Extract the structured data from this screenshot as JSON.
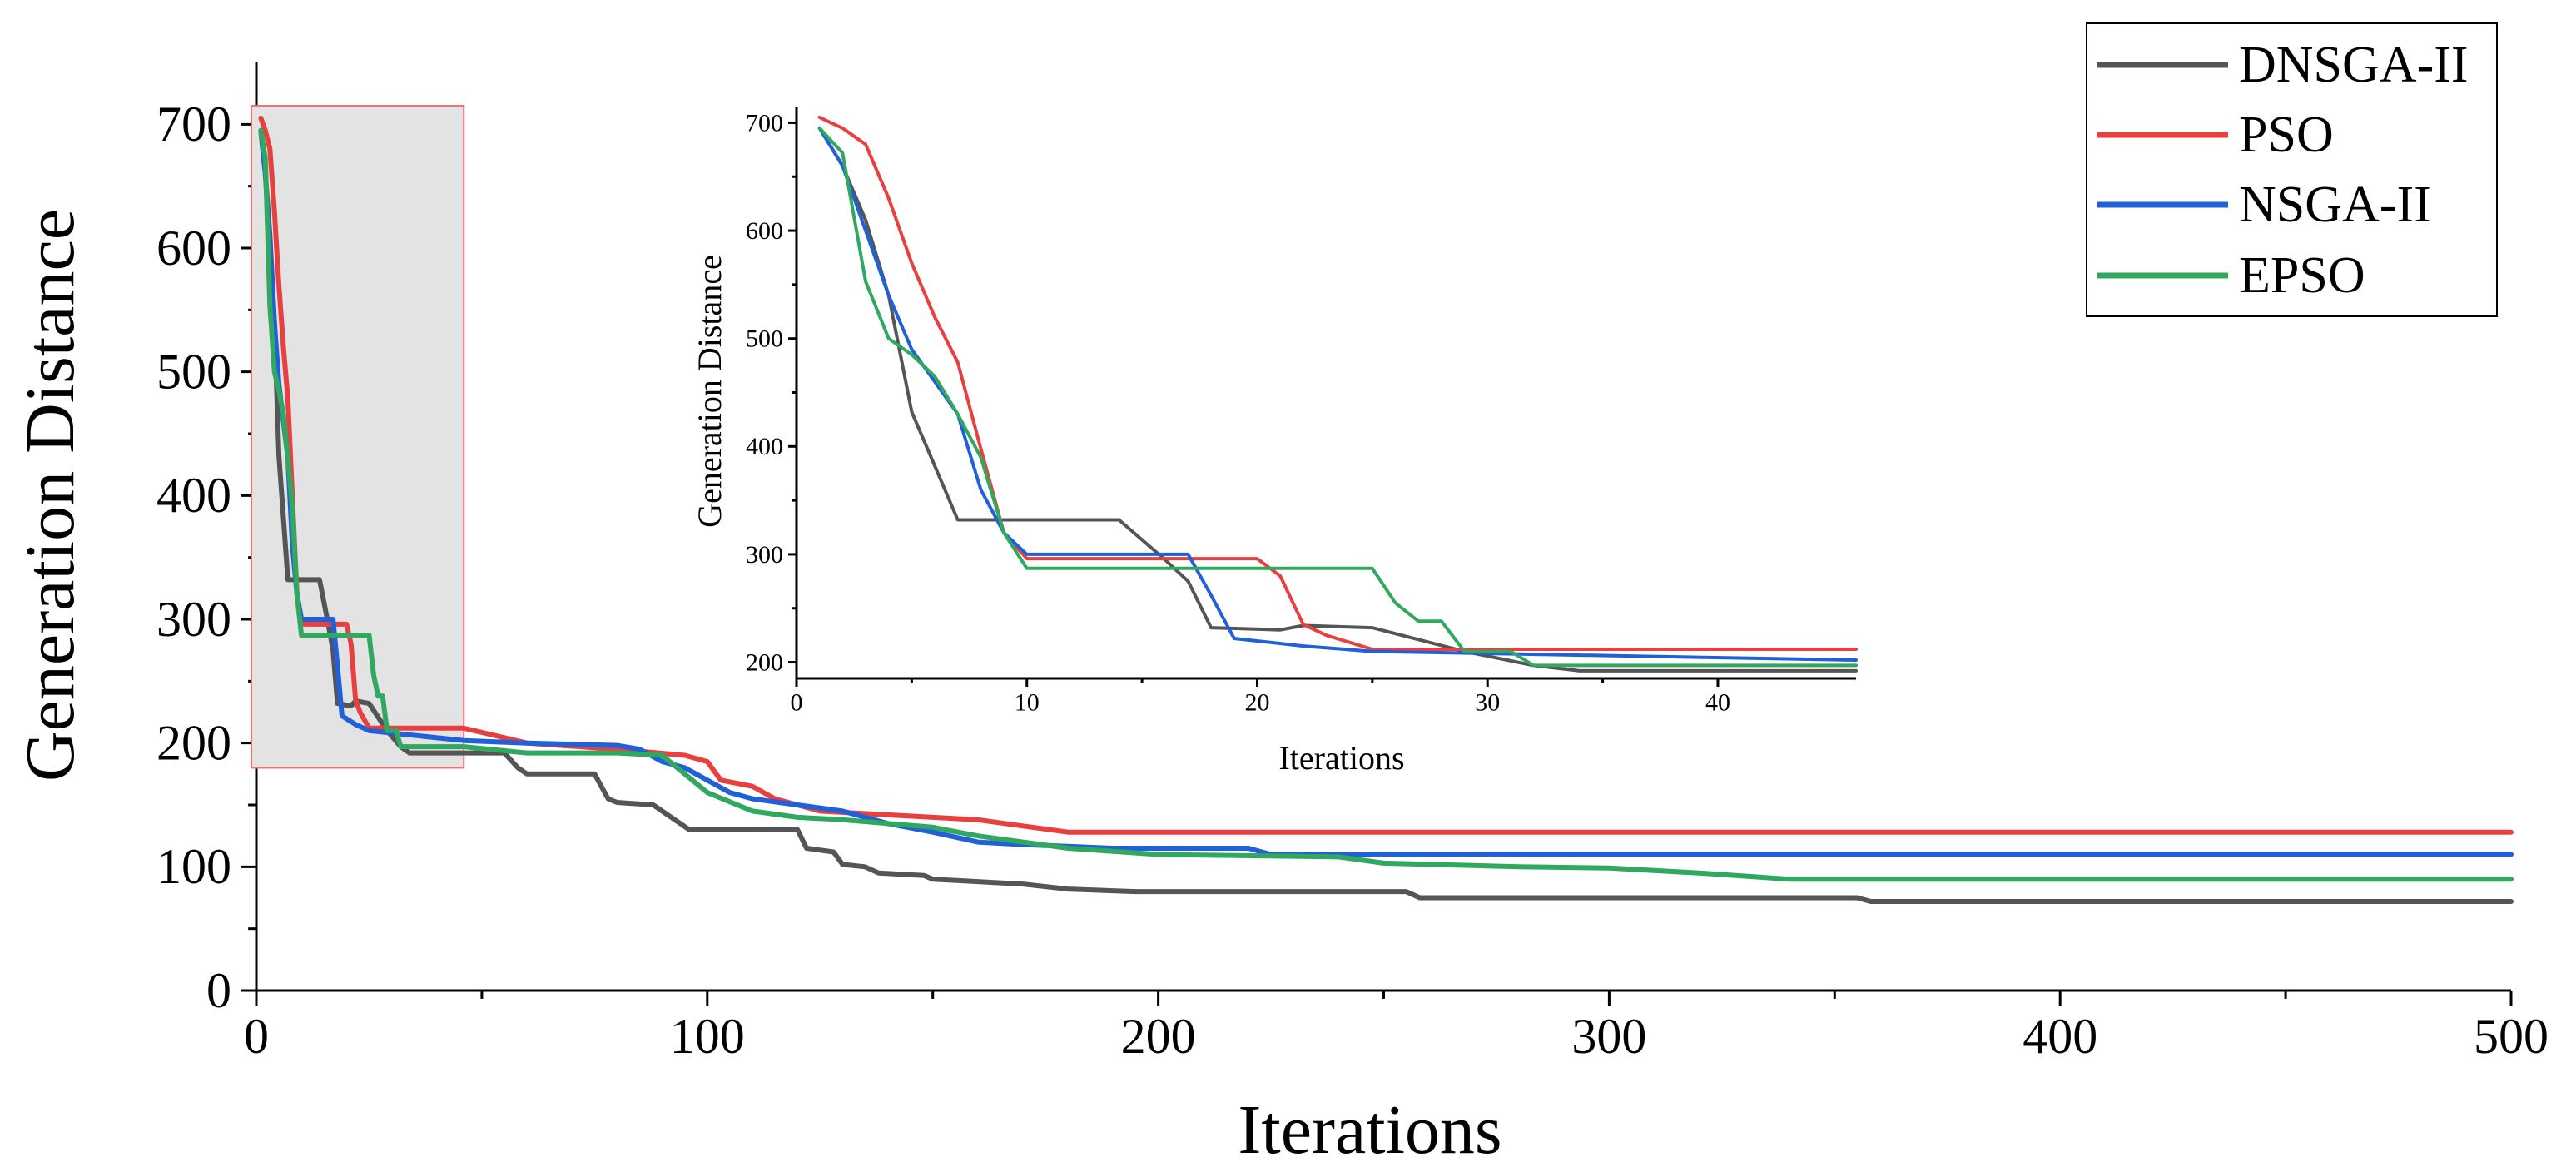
{
  "chart_data": {
    "type": "line",
    "main": {
      "xlabel": "Iterations",
      "ylabel": "Generation Distance",
      "xlim": [
        0,
        500
      ],
      "ylim": [
        0,
        750
      ],
      "xticks": [
        0,
        100,
        200,
        300,
        400,
        500
      ],
      "yticks": [
        0,
        100,
        200,
        300,
        400,
        500,
        600,
        700
      ],
      "highlight_box": {
        "x": [
          0,
          46
        ],
        "y": [
          180,
          715
        ]
      },
      "legend_position": "top-right",
      "series": [
        {
          "name": "DNSGA-II",
          "color": "#555555",
          "points": [
            [
              1,
              695
            ],
            [
              2,
              660
            ],
            [
              3,
              610
            ],
            [
              4,
              540
            ],
            [
              5,
              432
            ],
            [
              7,
              332
            ],
            [
              14,
              332
            ],
            [
              16,
              295
            ],
            [
              17,
              275
            ],
            [
              18,
              232
            ],
            [
              21,
              230
            ],
            [
              22,
              234
            ],
            [
              25,
              232
            ],
            [
              29,
              210
            ],
            [
              32,
              197
            ],
            [
              34,
              192
            ],
            [
              46,
              192
            ],
            [
              55,
              192
            ],
            [
              58,
              180
            ],
            [
              60,
              175
            ],
            [
              75,
              175
            ],
            [
              78,
              155
            ],
            [
              80,
              152
            ],
            [
              88,
              150
            ],
            [
              92,
              140
            ],
            [
              96,
              130
            ],
            [
              120,
              130
            ],
            [
              122,
              115
            ],
            [
              128,
              112
            ],
            [
              130,
              102
            ],
            [
              135,
              100
            ],
            [
              138,
              95
            ],
            [
              148,
              93
            ],
            [
              150,
              90
            ],
            [
              170,
              86
            ],
            [
              180,
              82
            ],
            [
              195,
              80
            ],
            [
              255,
              80
            ],
            [
              258,
              75
            ],
            [
              355,
              75
            ],
            [
              358,
              72
            ],
            [
              500,
              72
            ]
          ]
        },
        {
          "name": "PSO",
          "color": "#e84040",
          "points": [
            [
              1,
              705
            ],
            [
              2,
              695
            ],
            [
              3,
              680
            ],
            [
              4,
              630
            ],
            [
              5,
              570
            ],
            [
              6,
              520
            ],
            [
              7,
              478
            ],
            [
              8,
              398
            ],
            [
              9,
              320
            ],
            [
              10,
              296
            ],
            [
              20,
              296
            ],
            [
              21,
              280
            ],
            [
              22,
              235
            ],
            [
              23,
              225
            ],
            [
              25,
              212
            ],
            [
              46,
              212
            ],
            [
              60,
              200
            ],
            [
              80,
              195
            ],
            [
              95,
              190
            ],
            [
              100,
              185
            ],
            [
              103,
              170
            ],
            [
              110,
              165
            ],
            [
              115,
              155
            ],
            [
              120,
              150
            ],
            [
              125,
              145
            ],
            [
              140,
              142
            ],
            [
              150,
              140
            ],
            [
              160,
              138
            ],
            [
              170,
              133
            ],
            [
              180,
              128
            ],
            [
              500,
              128
            ]
          ]
        },
        {
          "name": "NSGA-II",
          "color": "#2060d8",
          "points": [
            [
              1,
              695
            ],
            [
              2,
              660
            ],
            [
              3,
              600
            ],
            [
              4,
              540
            ],
            [
              5,
              490
            ],
            [
              7,
              430
            ],
            [
              8,
              360
            ],
            [
              9,
              320
            ],
            [
              10,
              300
            ],
            [
              17,
              300
            ],
            [
              18,
              262
            ],
            [
              19,
              222
            ],
            [
              22,
              215
            ],
            [
              25,
              210
            ],
            [
              46,
              202
            ],
            [
              60,
              200
            ],
            [
              80,
              198
            ],
            [
              85,
              195
            ],
            [
              90,
              185
            ],
            [
              95,
              180
            ],
            [
              100,
              170
            ],
            [
              105,
              160
            ],
            [
              110,
              155
            ],
            [
              120,
              150
            ],
            [
              130,
              145
            ],
            [
              140,
              135
            ],
            [
              150,
              128
            ],
            [
              160,
              120
            ],
            [
              170,
              118
            ],
            [
              190,
              115
            ],
            [
              220,
              115
            ],
            [
              225,
              110
            ],
            [
              500,
              110
            ]
          ]
        },
        {
          "name": "EPSO",
          "color": "#30a860",
          "points": [
            [
              1,
              695
            ],
            [
              2,
              672
            ],
            [
              3,
              553
            ],
            [
              4,
              500
            ],
            [
              5,
              485
            ],
            [
              6,
              465
            ],
            [
              7,
              430
            ],
            [
              8,
              390
            ],
            [
              9,
              320
            ],
            [
              10,
              287
            ],
            [
              25,
              287
            ],
            [
              26,
              255
            ],
            [
              27,
              238
            ],
            [
              28,
              238
            ],
            [
              29,
              210
            ],
            [
              31,
              210
            ],
            [
              32,
              197
            ],
            [
              46,
              197
            ],
            [
              60,
              192
            ],
            [
              80,
              192
            ],
            [
              90,
              190
            ],
            [
              95,
              175
            ],
            [
              100,
              160
            ],
            [
              110,
              145
            ],
            [
              120,
              140
            ],
            [
              130,
              138
            ],
            [
              150,
              132
            ],
            [
              160,
              125
            ],
            [
              170,
              120
            ],
            [
              180,
              115
            ],
            [
              200,
              110
            ],
            [
              240,
              108
            ],
            [
              250,
              103
            ],
            [
              280,
              100
            ],
            [
              300,
              99
            ],
            [
              320,
              95
            ],
            [
              340,
              90
            ],
            [
              500,
              90
            ]
          ]
        }
      ]
    },
    "inset": {
      "xlabel": "Iterations",
      "ylabel": "Generation Distance",
      "xlim": [
        0,
        46
      ],
      "ylim": [
        185,
        715
      ],
      "xticks": [
        0,
        10,
        20,
        30,
        40
      ],
      "yticks": [
        200,
        300,
        400,
        500,
        600,
        700
      ]
    }
  }
}
